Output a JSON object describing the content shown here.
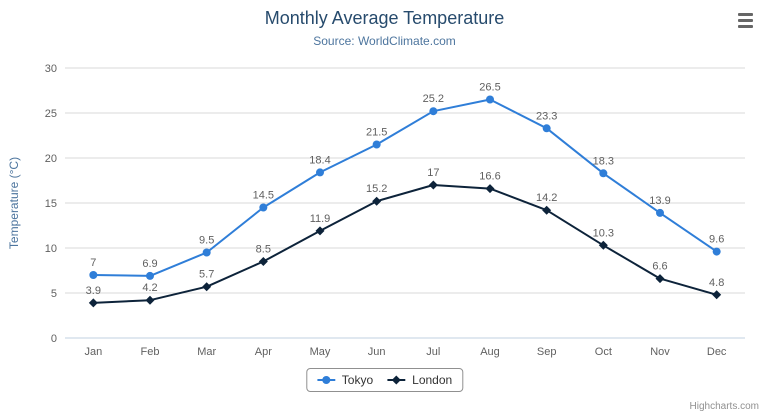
{
  "colors": {
    "tokyo": "#2f7ed8",
    "london": "#0d233a",
    "grid": "#d8d8d8",
    "axis_line": "#c0d0e0",
    "axis_label": "#606060",
    "data_label": "#606060",
    "title": "#274b6d",
    "subtitle": "#4d759e"
  },
  "credits_label": "Highcharts.com",
  "chart_data": {
    "type": "line",
    "title": "Monthly Average Temperature",
    "subtitle": "Source: WorldClimate.com",
    "xlabel": "",
    "ylabel": "Temperature (°C)",
    "ylim": [
      0,
      30
    ],
    "ytick_interval": 5,
    "grid": true,
    "legend_position": "bottom",
    "categories": [
      "Jan",
      "Feb",
      "Mar",
      "Apr",
      "May",
      "Jun",
      "Jul",
      "Aug",
      "Sep",
      "Oct",
      "Nov",
      "Dec"
    ],
    "series": [
      {
        "name": "Tokyo",
        "marker": "circle",
        "color": "#2f7ed8",
        "values": [
          7,
          6.9,
          9.5,
          14.5,
          18.4,
          21.5,
          25.2,
          26.5,
          23.3,
          18.3,
          13.9,
          9.6
        ]
      },
      {
        "name": "London",
        "marker": "diamond",
        "color": "#0d233a",
        "values": [
          3.9,
          4.2,
          5.7,
          8.5,
          11.9,
          15.2,
          17,
          16.6,
          14.2,
          10.3,
          6.6,
          4.8
        ]
      }
    ]
  }
}
